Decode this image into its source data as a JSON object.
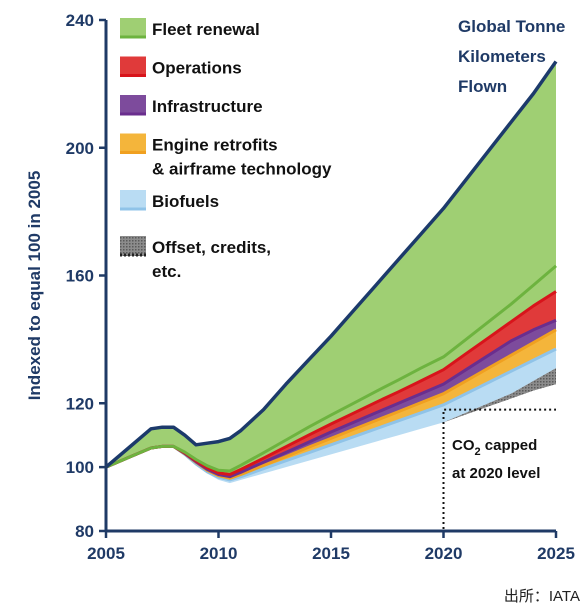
{
  "chart_data": {
    "type": "area",
    "title": "",
    "ylabel": "Indexed to equal 100 in 2005",
    "xlabel": "",
    "xlim": [
      2005,
      2025
    ],
    "ylim": [
      80,
      240
    ],
    "x_ticks": [
      "2005",
      "2010",
      "2015",
      "2020",
      "2025"
    ],
    "y_ticks": [
      "80",
      "100",
      "120",
      "160",
      "200",
      "240"
    ],
    "x": [
      2005,
      2006,
      2007,
      2007.5,
      2008,
      2008.5,
      2009,
      2009.5,
      2010,
      2010.5,
      2011,
      2012,
      2013,
      2014,
      2015,
      2016,
      2017,
      2018,
      2019,
      2020,
      2021,
      2022,
      2023,
      2024,
      2025
    ],
    "baseline": [
      100,
      103,
      106,
      106.5,
      106.5,
      104,
      101,
      98,
      96,
      95,
      96,
      98,
      100,
      102,
      104,
      106,
      108,
      110,
      112,
      114,
      116.5,
      119,
      121.5,
      124,
      126
    ],
    "series": [
      {
        "name": "Offset, credits, etc.",
        "color": "#8c8c8c",
        "values": [
          100,
          103,
          106,
          106.5,
          106.5,
          104,
          101,
          98,
          96,
          95,
          96,
          98,
          100,
          102,
          104,
          106,
          108,
          110,
          112,
          114,
          117,
          120,
          123,
          127,
          131
        ]
      },
      {
        "name": "Biofuels",
        "color": "#b9dcf3",
        "values": [
          100,
          103,
          106,
          106.5,
          106.5,
          104,
          101,
          98.5,
          96.8,
          96,
          97,
          99.5,
          102,
          104.5,
          107,
          109.5,
          112,
          114.5,
          117,
          119.5,
          123,
          126.5,
          130,
          133.5,
          137
        ]
      },
      {
        "name": "Engine retrofits\n& airframe technology",
        "color": "#f4b53b",
        "values": [
          100,
          103,
          106,
          106.5,
          106.5,
          104.2,
          101.5,
          99,
          97.3,
          96.5,
          97.7,
          100.5,
          103.3,
          106.2,
          109,
          111.8,
          114.6,
          117.4,
          120.2,
          123,
          127,
          131,
          135,
          139,
          143
        ]
      },
      {
        "name": "Infrastructure",
        "color": "#7d4b9c",
        "values": [
          100,
          103,
          106,
          106.5,
          106.5,
          104.3,
          101.7,
          99.3,
          97.7,
          97,
          98.4,
          101.5,
          104.6,
          107.8,
          111,
          114,
          117,
          120,
          123,
          126,
          130.5,
          135,
          139.5,
          143,
          146
        ]
      },
      {
        "name": "Operations",
        "color": "#e03a3a",
        "values": [
          100,
          103,
          106,
          106.5,
          106.5,
          104.5,
          102,
          99.8,
          98.2,
          97.7,
          99.3,
          102.8,
          106.4,
          110,
          113.5,
          116.9,
          120.3,
          123.6,
          127,
          130.5,
          135.5,
          140.5,
          145.5,
          150.5,
          155
        ]
      },
      {
        "name": "Fleet renewal",
        "color": "#9fcf73",
        "values": [
          100,
          103,
          106,
          106.5,
          106.5,
          104.7,
          102.4,
          100.4,
          99,
          98.8,
          100.6,
          104.5,
          108.5,
          112.5,
          116.3,
          120,
          123.7,
          127.3,
          131,
          134.5,
          140,
          145.5,
          151,
          157,
          163
        ]
      },
      {
        "name": "Global Tonne Kilometers Flown",
        "color": "#1c3a6b",
        "kind": "line",
        "values": [
          100,
          106,
          112,
          112.5,
          112.5,
          110,
          107,
          107.5,
          108,
          109,
          111.5,
          118,
          126,
          133.5,
          141,
          149,
          157,
          165,
          173,
          181,
          190,
          199,
          208,
          217,
          227
        ]
      }
    ],
    "legend": [
      {
        "label": "Fleet renewal",
        "color": "#9fcf73"
      },
      {
        "label": "Operations",
        "color": "#e03a3a"
      },
      {
        "label": "Infrastructure",
        "color": "#7d4b9c"
      },
      {
        "label": "Engine retrofits",
        "label2": "& airframe technology",
        "color": "#f4b53b"
      },
      {
        "label": "Biofuels",
        "color": "#b9dcf3"
      },
      {
        "label": "Offset, credits,",
        "label2": "etc.",
        "color": "#8c8c8c"
      }
    ],
    "legend_position": "top-left",
    "callout": [
      "Global Tonne",
      "Kilometers",
      "Flown"
    ],
    "annotation": [
      "CO",
      "2",
      " capped",
      "at 2020 level"
    ],
    "grid": false
  },
  "source": "出所：IATA"
}
